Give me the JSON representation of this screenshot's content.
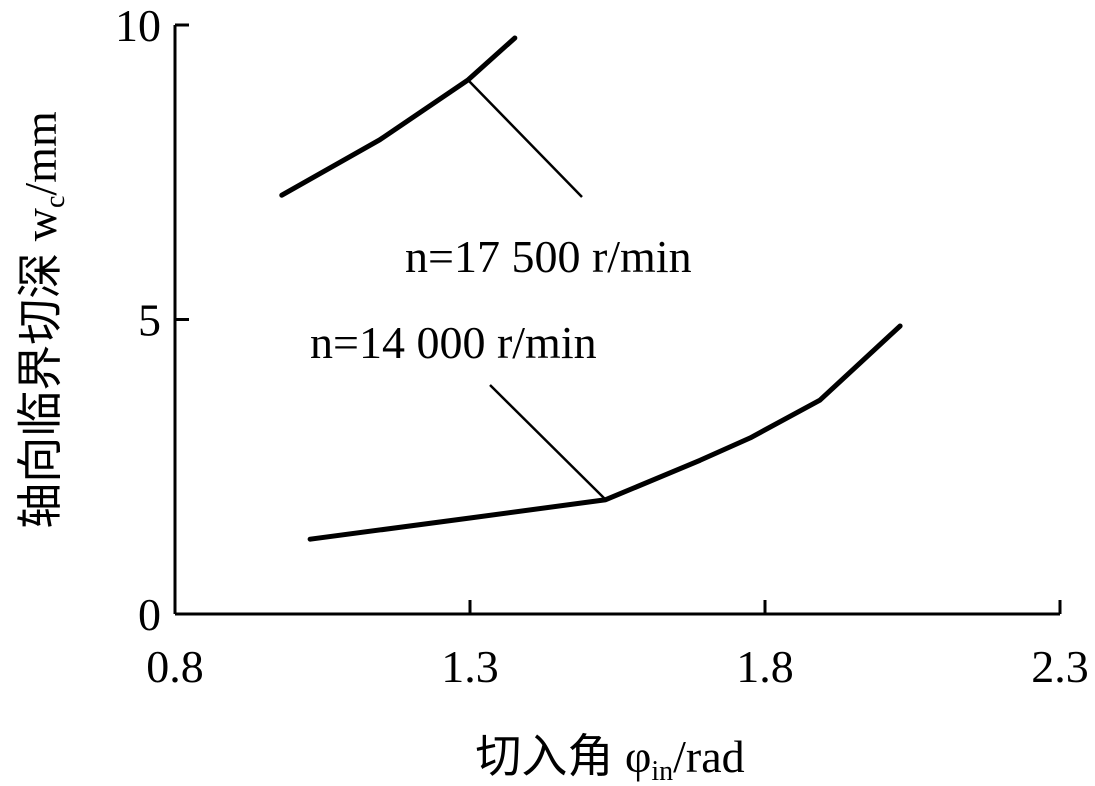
{
  "chart_data": {
    "type": "line",
    "x_label": {
      "main": "切入角 φ",
      "sub": "in",
      "rest": "/rad"
    },
    "y_label": {
      "main": "轴向临界切深 w",
      "sub": "c",
      "rest": "/mm"
    },
    "xlim": [
      0.8,
      2.3
    ],
    "xticks": [
      0.8,
      1.3,
      1.8,
      2.3
    ],
    "ylim": [
      0,
      10
    ],
    "yticks": [
      0,
      5,
      10
    ],
    "series": [
      {
        "name": "n=17 500  r/min",
        "color": "#000000",
        "x": [
          0.981,
          1.147,
          1.297,
          1.376
        ],
        "values": [
          7.11,
          8.05,
          9.07,
          9.78
        ]
      },
      {
        "name": "n=14 000  r/min",
        "color": "#000000",
        "x": [
          1.029,
          1.3,
          1.53,
          1.69,
          1.775,
          1.893,
          2.029
        ],
        "values": [
          1.27,
          1.63,
          1.94,
          2.61,
          2.99,
          3.63,
          4.89
        ]
      }
    ]
  }
}
